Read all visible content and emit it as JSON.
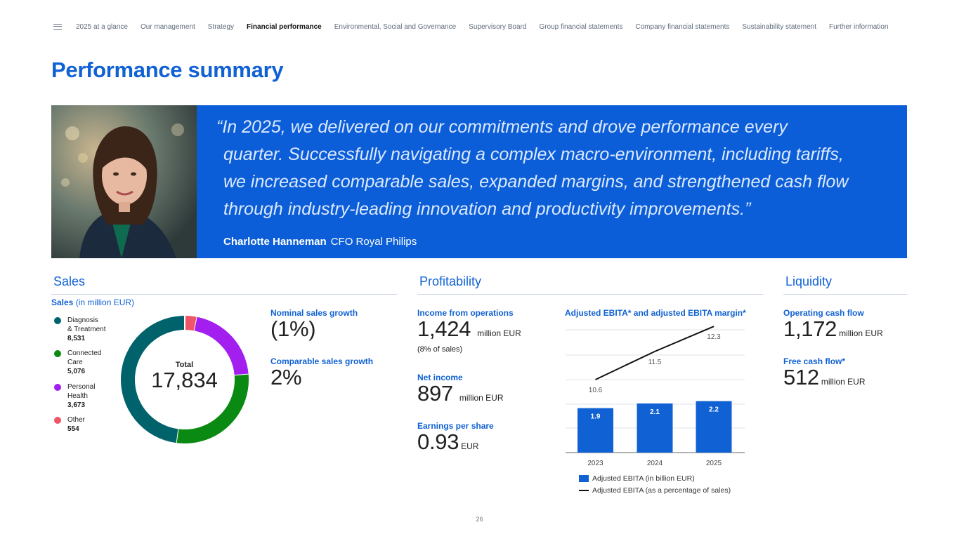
{
  "nav": {
    "items": [
      {
        "label": "2025 at a glance",
        "active": false
      },
      {
        "label": "Our management",
        "active": false
      },
      {
        "label": "Strategy",
        "active": false
      },
      {
        "label": "Financial performance",
        "active": true
      },
      {
        "label": "Environmental, Social and Governance",
        "active": false
      },
      {
        "label": "Supervisory Board",
        "active": false
      },
      {
        "label": "Group financial statements",
        "active": false
      },
      {
        "label": "Company financial statements",
        "active": false
      },
      {
        "label": "Sustainability statement",
        "active": false
      },
      {
        "label": "Further information",
        "active": false
      }
    ]
  },
  "page": {
    "title": "Performance summary",
    "number": "26"
  },
  "quote": {
    "lines": [
      "“In 2025, we delivered on our commitments and drove performance every",
      "quarter. Successfully navigating a complex macro-environment, including tariffs,",
      "we increased comparable sales, expanded margins, and strengthened cash flow",
      "through industry-leading innovation and productivity improvements.”"
    ],
    "author_name": "Charlotte Hanneman",
    "author_role": "CFO Royal Philips"
  },
  "sales": {
    "section_title": "Sales",
    "chart_title": "Sales",
    "chart_unit": "(in million EUR)",
    "total_label": "Total",
    "total_value": "17,834",
    "legend": [
      {
        "label_line1": "Diagnosis",
        "label_line2": "& Treatment",
        "value": "8,531",
        "color": "#00636b"
      },
      {
        "label_line1": "Connected",
        "label_line2": "Care",
        "value": "5,076",
        "color": "#0a8a12"
      },
      {
        "label_line1": "Personal",
        "label_line2": "Health",
        "value": "3,673",
        "color": "#a21fef"
      },
      {
        "label_line1": "Other",
        "label_line2": "",
        "value": "554",
        "color": "#ee5566"
      }
    ],
    "nominal_label": "Nominal sales growth",
    "nominal_value": "(1%)",
    "comparable_label": "Comparable sales growth",
    "comparable_value": "2%"
  },
  "profitability": {
    "section_title": "Profitability",
    "ifo_label": "Income from operations",
    "ifo_value": "1,424",
    "ifo_unit": "million EUR",
    "ifo_note": "(8% of sales)",
    "net_label": "Net income",
    "net_value": "897",
    "net_unit": "million EUR",
    "eps_label": "Earnings per share",
    "eps_value": "0.93",
    "eps_unit": "EUR"
  },
  "liquidity": {
    "section_title": "Liquidity",
    "ocf_label": "Operating cash flow",
    "ocf_value": "1,172",
    "ocf_unit": "million EUR",
    "fcf_label": "Free cash flow*",
    "fcf_value": "512",
    "fcf_unit": "million EUR"
  },
  "chart_data": [
    {
      "type": "pie",
      "title": "Sales (in million EUR)",
      "categories": [
        "Diagnosis & Treatment",
        "Connected Care",
        "Personal Health",
        "Other"
      ],
      "values": [
        8531,
        5076,
        3673,
        554
      ],
      "colors": [
        "#00636b",
        "#0a8a12",
        "#a21fef",
        "#ee5566"
      ],
      "total": 17834
    },
    {
      "type": "bar",
      "title": "Adjusted EBITA* and adjusted EBITA margin*",
      "categories": [
        "2023",
        "2024",
        "2025"
      ],
      "series": [
        {
          "name": "Adjusted EBITA (in billion EUR)",
          "type": "bar",
          "values": [
            1.9,
            2.1,
            2.2
          ],
          "labels": [
            "1.9",
            "2.1",
            "2.2"
          ],
          "color": "#1061d3"
        },
        {
          "name": "Adjusted EBITA (as a percentage of sales)",
          "type": "line",
          "values": [
            10.6,
            11.5,
            12.3
          ],
          "labels": [
            "10.6",
            "11.5",
            "12.3"
          ],
          "color": "#111111"
        }
      ],
      "legend_bar": "Adjusted EBITA (in billion EUR)",
      "legend_line": "Adjusted EBITA (as a percentage of sales)"
    }
  ]
}
